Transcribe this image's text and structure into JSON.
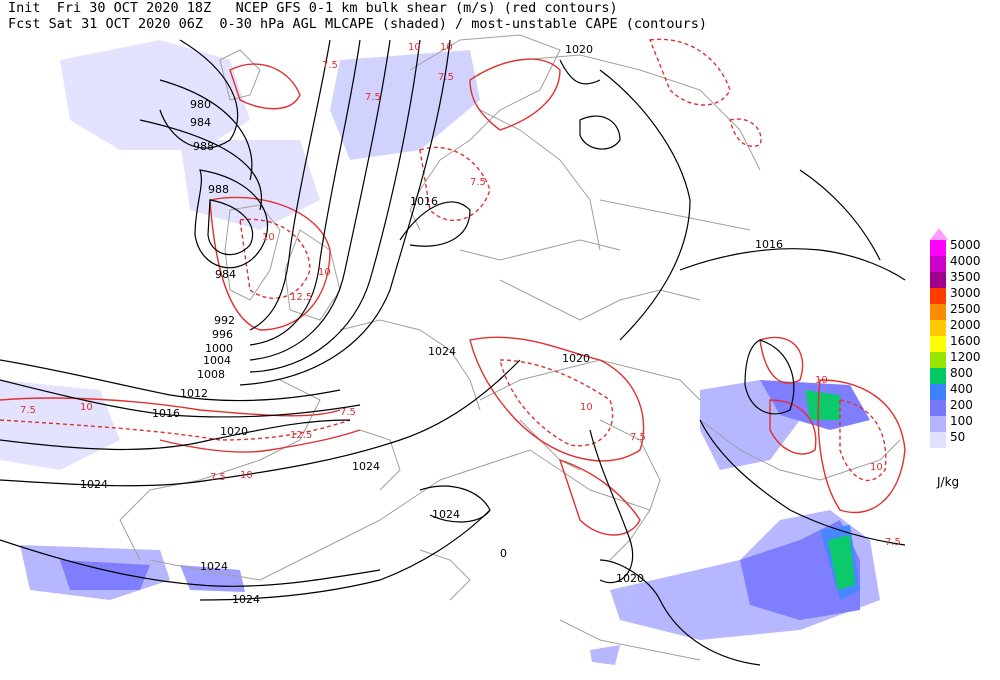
{
  "header": {
    "line1": "Init  Fri 30 OCT 2020 18Z   NCEP GFS 0-1 km bulk shear (m/s) (red contours)",
    "line2": "Fcst Sat 31 OCT 2020 06Z  0-30 hPa AGL MLCAPE (shaded) / most-unstable CAPE (contours)"
  },
  "isobar_labels": [
    "980",
    "984",
    "988",
    "988",
    "984",
    "992",
    "996",
    "1000",
    "1004",
    "1008",
    "1012",
    "1016",
    "1020",
    "1024",
    "1016",
    "1020",
    "1016",
    "1024",
    "1020",
    "1024",
    "1024",
    "1024",
    "1020",
    "1024",
    "0"
  ],
  "shear_labels": [
    "7.5",
    "10",
    "7.5",
    "10",
    "7.5",
    "10",
    "7.5",
    "10",
    "12.5",
    "7.5",
    "10",
    "7.5",
    "10",
    "7.5",
    "12.5",
    "10",
    "7.5",
    "10",
    "7.5",
    "10"
  ],
  "legend": {
    "units": "J/kg",
    "levels": [
      {
        "label": "5000",
        "color": "#ff00ff"
      },
      {
        "label": "4000",
        "color": "#cc00cc"
      },
      {
        "label": "3500",
        "color": "#a0008c"
      },
      {
        "label": "3000",
        "color": "#ff3c00"
      },
      {
        "label": "2500",
        "color": "#ff8c00"
      },
      {
        "label": "2000",
        "color": "#ffc800"
      },
      {
        "label": "1600",
        "color": "#ffff00"
      },
      {
        "label": "1200",
        "color": "#96e600"
      },
      {
        "label": "800",
        "color": "#00c864"
      },
      {
        "label": "400",
        "color": "#3c82ff"
      },
      {
        "label": "200",
        "color": "#7878ff"
      },
      {
        "label": "100",
        "color": "#b4b4ff"
      },
      {
        "label": "50",
        "color": "#e1e1ff"
      }
    ],
    "top_arrow_color": "#ff9cff"
  },
  "colors": {
    "isobar": "#000000",
    "shear": "#e03030",
    "coast": "#a0a0a0"
  }
}
